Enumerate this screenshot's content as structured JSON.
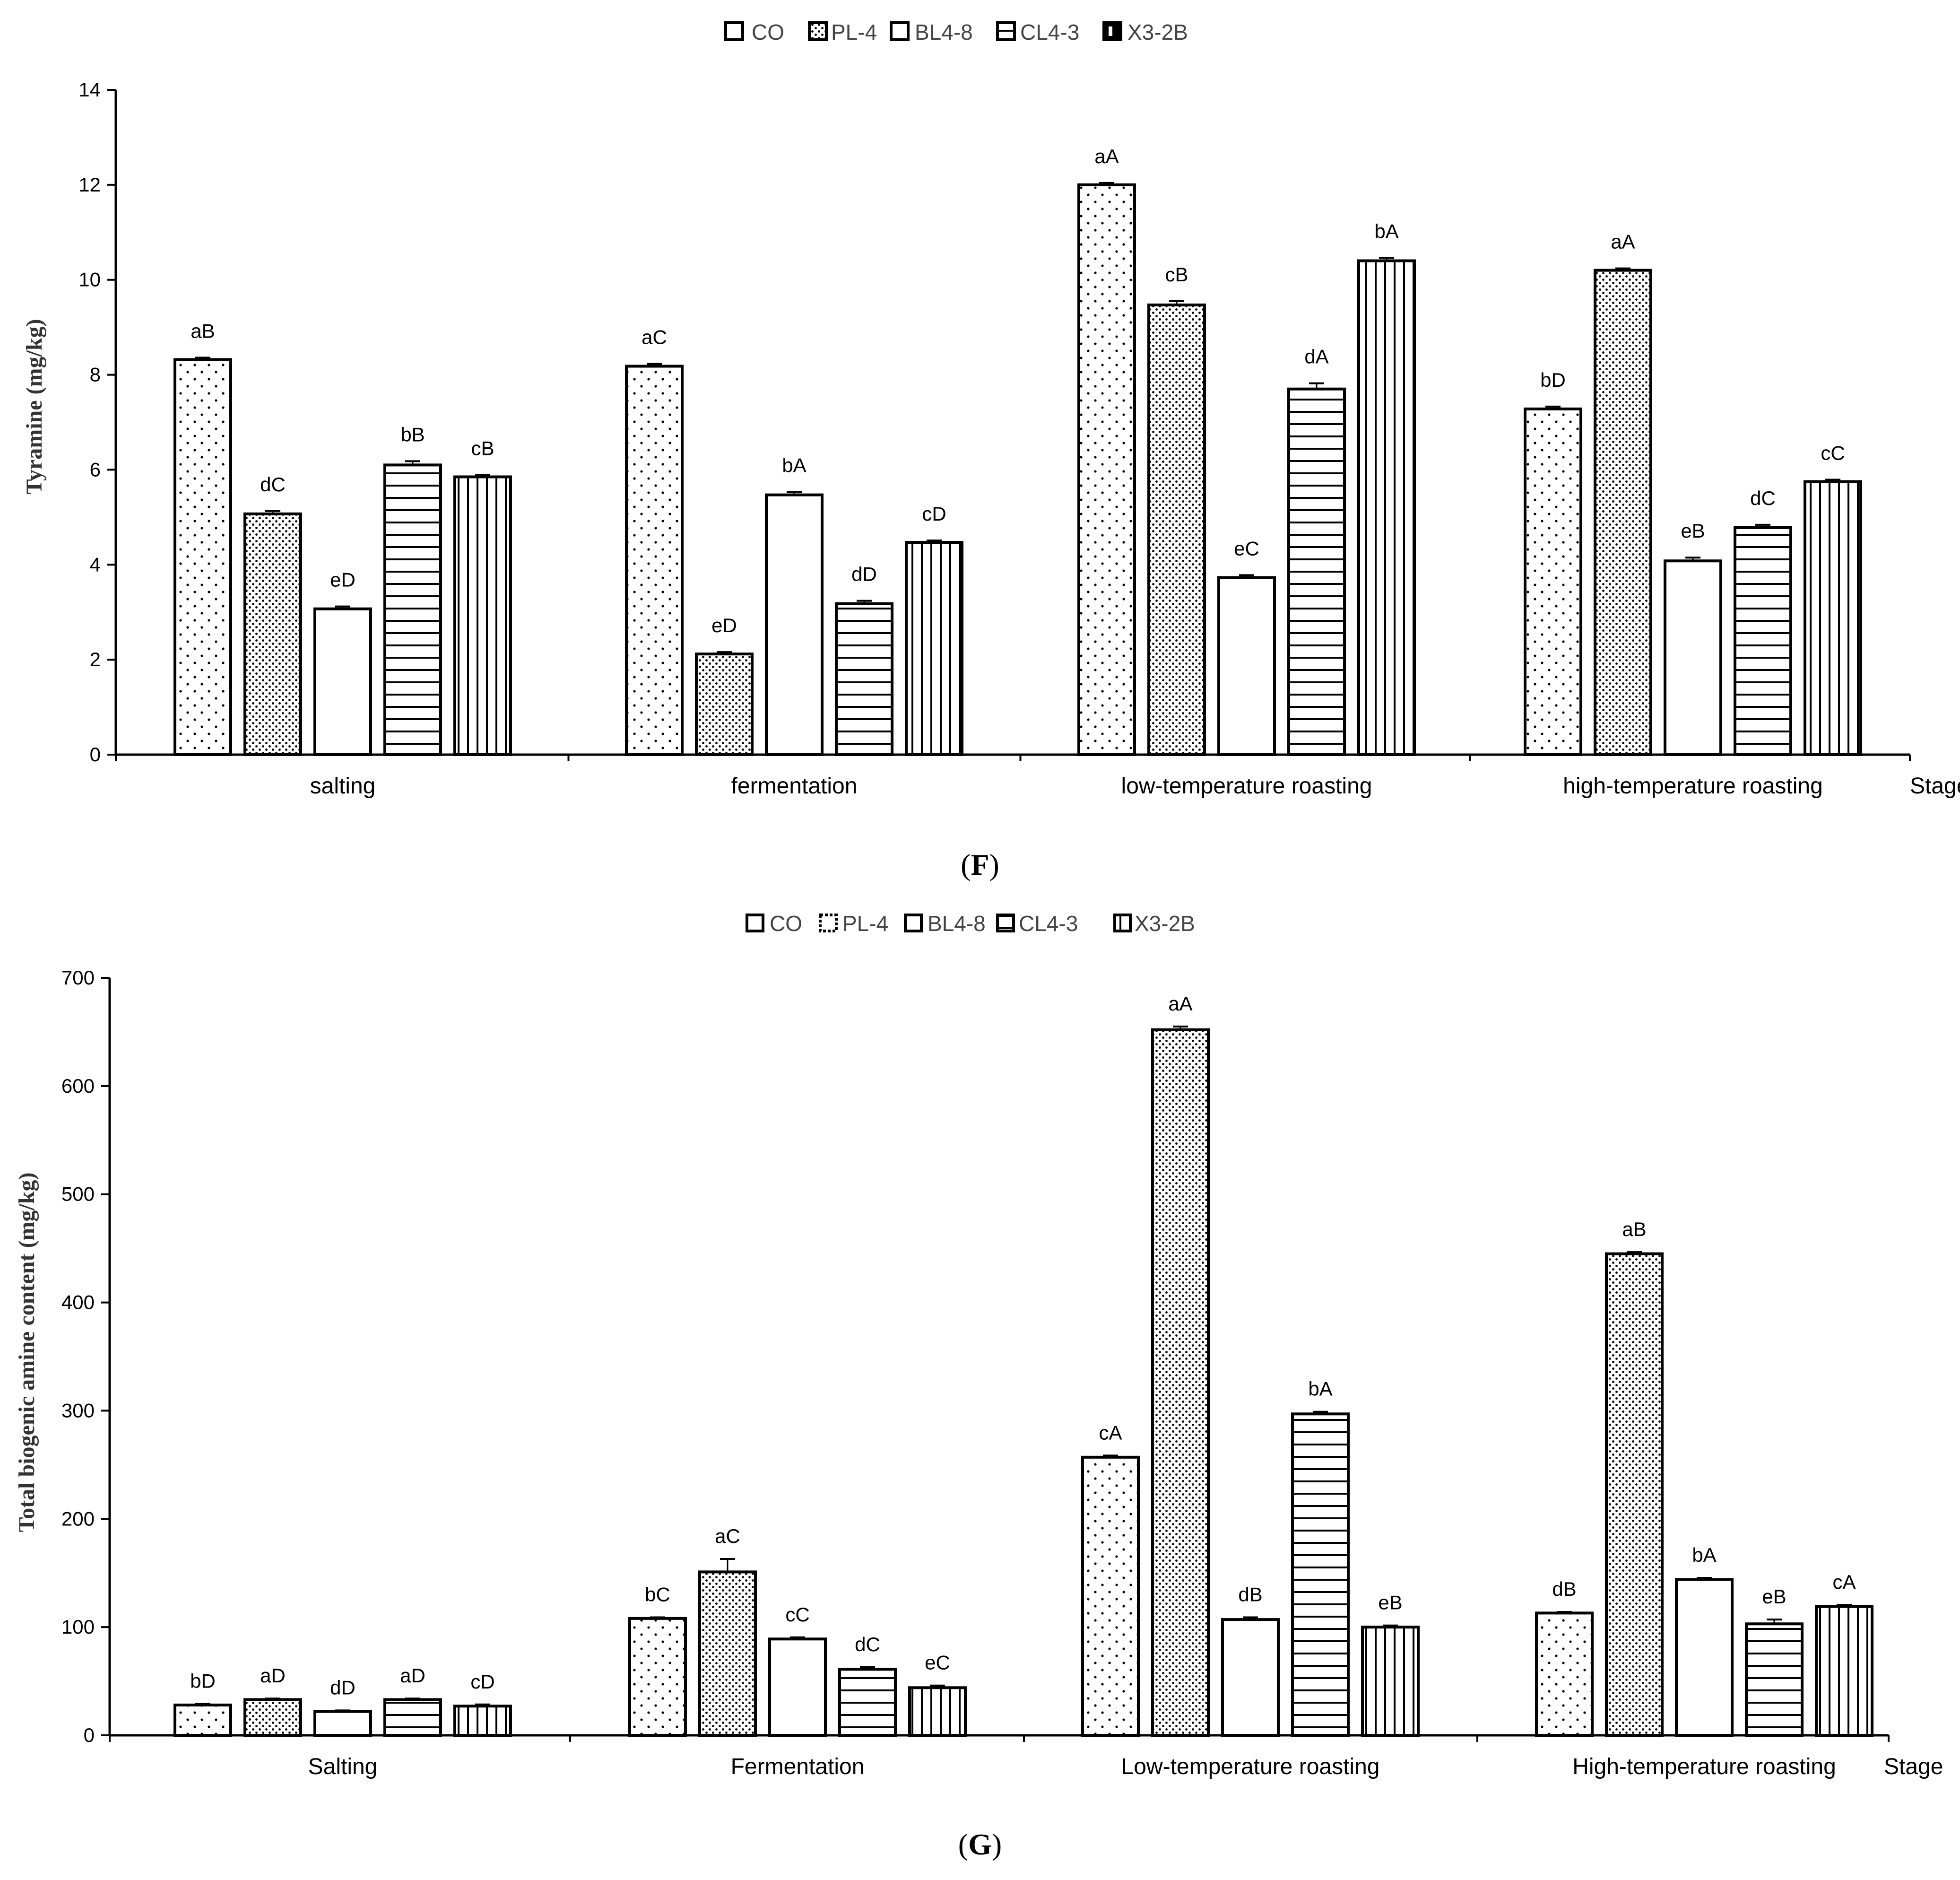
{
  "chart_data": [
    {
      "panel": "F",
      "type": "bar",
      "ylabel": "Tyramine (mg/kg)",
      "xlabel": "Stage",
      "ylim": [
        0,
        14
      ],
      "yticks": [
        0,
        2,
        4,
        6,
        8,
        10,
        12,
        14
      ],
      "categories": [
        "salting",
        "fermentation",
        "low-temperature roasting",
        "high-temperature roasting"
      ],
      "legend_position": "top-center",
      "series": [
        {
          "name": "CO",
          "pattern": "sparse-dots",
          "values": [
            8.32,
            8.18,
            12.0,
            7.28
          ],
          "labels": [
            "aB",
            "aC",
            "aA",
            "bD"
          ],
          "errors": [
            0.04,
            0.05,
            0.04,
            0.05
          ]
        },
        {
          "name": "PL-4",
          "pattern": "dense-dots",
          "values": [
            5.07,
            2.12,
            9.47,
            10.2
          ],
          "labels": [
            "dC",
            "eD",
            "cB",
            "aA"
          ],
          "errors": [
            0.06,
            0.04,
            0.08,
            0.04
          ]
        },
        {
          "name": "BL4-8",
          "pattern": "none",
          "values": [
            3.07,
            5.47,
            3.73,
            4.08
          ],
          "labels": [
            "eD",
            "bA",
            "eC",
            "eB"
          ],
          "errors": [
            0.05,
            0.06,
            0.05,
            0.07
          ]
        },
        {
          "name": "CL4-3",
          "pattern": "horizontal-lines",
          "values": [
            6.1,
            3.18,
            7.7,
            4.78
          ],
          "labels": [
            "bB",
            "dD",
            "dA",
            "dC"
          ],
          "errors": [
            0.08,
            0.06,
            0.12,
            0.06
          ]
        },
        {
          "name": "X3-2B",
          "pattern": "vertical-lines",
          "values": [
            5.85,
            4.47,
            10.4,
            5.75
          ],
          "labels": [
            "cB",
            "cD",
            "bA",
            "cC"
          ],
          "errors": [
            0.04,
            0.04,
            0.06,
            0.04
          ]
        }
      ]
    },
    {
      "panel": "G",
      "type": "bar",
      "ylabel": "Total biogenic amine content (mg/kg)",
      "xlabel": "Stage",
      "ylim": [
        0,
        700
      ],
      "yticks": [
        0,
        100,
        200,
        300,
        400,
        500,
        600,
        700
      ],
      "categories": [
        "Salting",
        "Fermentation",
        "Low-temperature roasting",
        "High-temperature roasting"
      ],
      "legend_position": "top-center",
      "series": [
        {
          "name": "CO",
          "pattern": "sparse-dots",
          "values": [
            28,
            108,
            257,
            113
          ],
          "labels": [
            "bD",
            "bC",
            "cA",
            "dB"
          ],
          "errors": [
            1,
            1,
            1.5,
            1
          ]
        },
        {
          "name": "PL-4",
          "pattern": "dense-dots",
          "values": [
            33,
            151,
            652,
            445
          ],
          "labels": [
            "aD",
            "aC",
            "aA",
            "aB"
          ],
          "errors": [
            1,
            12,
            3,
            1.5
          ]
        },
        {
          "name": "BL4-8",
          "pattern": "none",
          "values": [
            22,
            89,
            107,
            144
          ],
          "labels": [
            "dD",
            "cC",
            "dB",
            "bA"
          ],
          "errors": [
            1,
            1.5,
            2,
            1.5
          ]
        },
        {
          "name": "CL4-3",
          "pattern": "horizontal-lines",
          "values": [
            33,
            61,
            297,
            103
          ],
          "labels": [
            "aD",
            "dC",
            "bA",
            "eB"
          ],
          "errors": [
            1,
            2,
            2,
            4
          ]
        },
        {
          "name": "X3-2B",
          "pattern": "vertical-lines",
          "values": [
            27,
            44,
            100,
            119
          ],
          "labels": [
            "cD",
            "eC",
            "eB",
            "cA"
          ],
          "errors": [
            1.5,
            2,
            1.5,
            1.5
          ]
        }
      ]
    }
  ],
  "legend": {
    "F": [
      "CO",
      "PL-4",
      "BL4-8",
      "CL4-3",
      "X3-2B"
    ],
    "G": [
      "CO",
      "PL-4",
      "BL4-8",
      "CL4-3",
      "X3-2B"
    ]
  },
  "panel_labels": {
    "F": {
      "open": "(",
      "letter": "F",
      "close": ")"
    },
    "G": {
      "open": "(",
      "letter": "G",
      "close": ")"
    }
  },
  "colors": {
    "axis": "#000000",
    "bar_fill": "#ffffff",
    "bar_stroke": "#000000",
    "legend_text": "#444444"
  }
}
